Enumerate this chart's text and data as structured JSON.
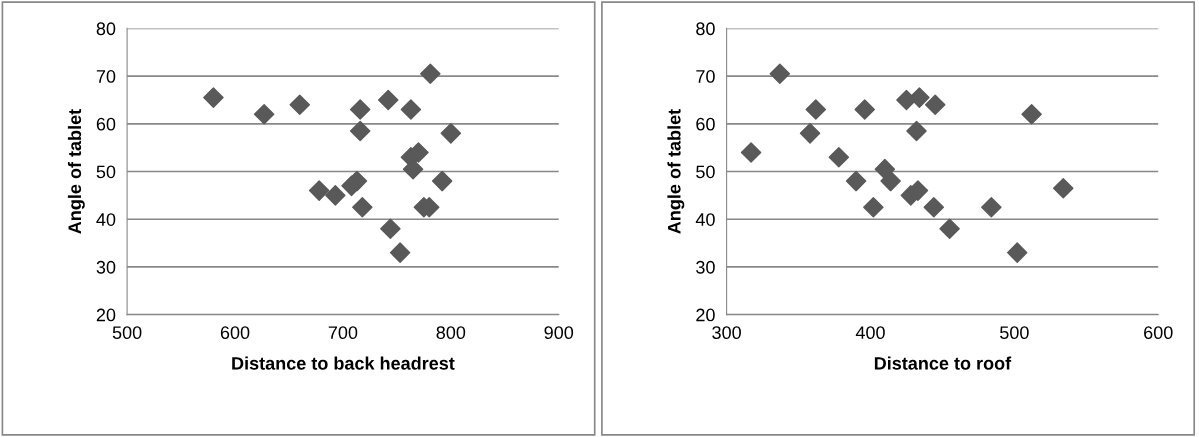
{
  "chart_data": [
    {
      "type": "scatter",
      "xlabel": "Distance to back headrest",
      "ylabel": "Angle of tablet",
      "marker": "diamond",
      "grid": "y",
      "xlim": [
        500,
        900
      ],
      "xticks": [
        500,
        600,
        700,
        800,
        900
      ],
      "ylim": [
        20,
        80
      ],
      "yticks": [
        20,
        30,
        40,
        50,
        60,
        70,
        80
      ],
      "series": [
        {
          "color": "#595959",
          "x": [
            580,
            627,
            660,
            678,
            693,
            708,
            713,
            716,
            716,
            718,
            742,
            744,
            753,
            763,
            763,
            765,
            770,
            775,
            780,
            781,
            792,
            800
          ],
          "values": [
            65.5,
            62,
            64,
            46,
            45,
            47,
            48,
            63,
            58.5,
            42.5,
            65,
            38,
            33,
            63,
            53,
            50.5,
            54,
            42.5,
            42.5,
            70.5,
            48,
            58
          ]
        }
      ]
    },
    {
      "type": "scatter",
      "xlabel": "Distance to roof",
      "ylabel": "Angle of tablet",
      "marker": "diamond",
      "grid": "y",
      "xlim": [
        300,
        600
      ],
      "xticks": [
        300,
        400,
        500,
        600
      ],
      "ylim": [
        20,
        80
      ],
      "yticks": [
        20,
        30,
        40,
        50,
        60,
        70,
        80
      ],
      "series": [
        {
          "color": "#595959",
          "x": [
            317,
            337,
            358,
            362,
            378,
            390,
            396,
            402,
            410,
            414,
            425,
            428,
            432,
            433,
            434,
            444,
            445,
            455,
            484,
            502,
            512,
            534
          ],
          "values": [
            54,
            70.5,
            58,
            63,
            53,
            48,
            63,
            42.5,
            50.5,
            48,
            65,
            45,
            58.5,
            46,
            65.5,
            42.5,
            64,
            38,
            42.5,
            33,
            62,
            46.5
          ]
        }
      ]
    }
  ]
}
